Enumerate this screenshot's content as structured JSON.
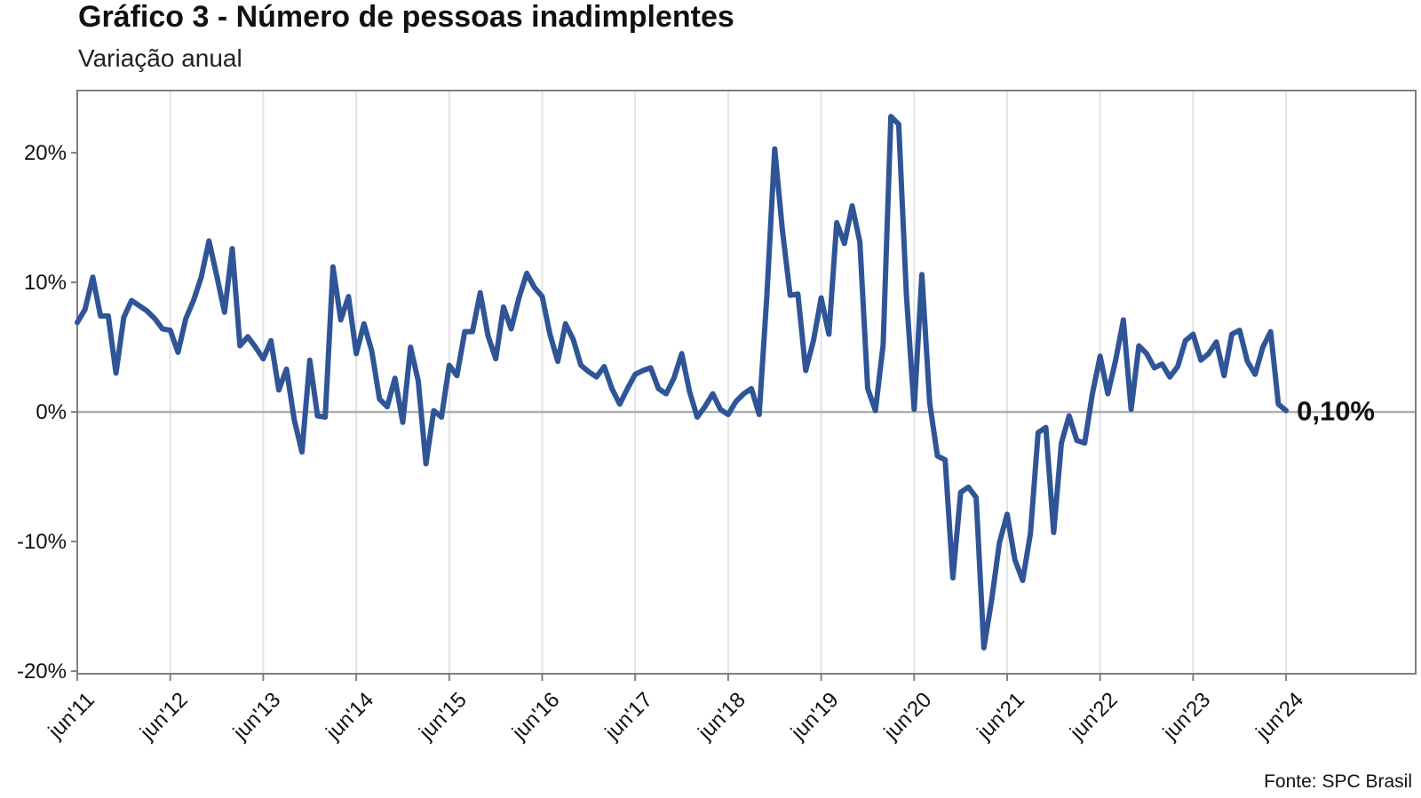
{
  "title": "Gráfico 3 - Número de pessoas inadimplentes",
  "subtitle": "Variação anual",
  "source": "Fonte: SPC Brasil",
  "end_label": "0,10%",
  "colors": {
    "line": "#2f5597",
    "grid": "#e3e3e3",
    "zero_line": "#b0b0b0",
    "frame": "#7f7f7f"
  },
  "chart_data": {
    "type": "line",
    "title": "Gráfico 3 - Número de pessoas inadimplentes",
    "subtitle": "Variação anual",
    "xlabel": "",
    "ylabel": "",
    "ylim": [
      -20.2,
      24.8
    ],
    "yticks": [
      20,
      10,
      0,
      -10,
      -20
    ],
    "ytick_labels": [
      "20%",
      "10%",
      "0%",
      "-10%",
      "-20%"
    ],
    "xticks": [
      "jun'11",
      "jun'12",
      "jun'13",
      "jun'14",
      "jun'15",
      "jun'16",
      "jun'17",
      "jun'18",
      "jun'19",
      "jun'20",
      "jun'21",
      "jun'22",
      "jun'23",
      "jun'24"
    ],
    "x_start": "jun'11",
    "x_end": "jun'24",
    "grid": "vertical",
    "series": [
      {
        "values": [
          6.9,
          7.9,
          10.4,
          7.4,
          7.4,
          3.0,
          7.3,
          8.6,
          8.2,
          7.8,
          7.2,
          6.4,
          6.3,
          4.6,
          7.2,
          8.6,
          10.4,
          13.2,
          10.5,
          7.7,
          12.6,
          5.1,
          5.8,
          5.0,
          4.1,
          5.5,
          1.7,
          3.3,
          -0.6,
          -3.1,
          4.0,
          -0.3,
          -0.4,
          11.2,
          7.1,
          8.9,
          4.5,
          6.8,
          4.7,
          1.0,
          0.4,
          2.6,
          -0.8,
          5.0,
          2.4,
          -4.0,
          0.1,
          -0.4,
          3.6,
          2.8,
          6.2,
          6.2,
          9.2,
          5.9,
          4.1,
          8.1,
          6.4,
          8.8,
          10.7,
          9.6,
          8.9,
          6.0,
          3.9,
          6.8,
          5.6,
          3.6,
          3.1,
          2.7,
          3.5,
          1.8,
          0.6,
          1.8,
          2.9,
          3.2,
          3.4,
          1.8,
          1.4,
          2.6,
          4.5,
          1.6,
          -0.4,
          0.4,
          1.4,
          0.2,
          -0.2,
          0.8,
          1.4,
          1.8,
          -0.2,
          9.0,
          20.3,
          14.0,
          9.0,
          9.1,
          3.2,
          5.5,
          8.8,
          6.0,
          14.6,
          13.0,
          15.9,
          13.1,
          1.8,
          0.1,
          5.2,
          22.8,
          22.2,
          9.0,
          0.2,
          10.6,
          0.7,
          -3.4,
          -3.7,
          -12.8,
          -6.2,
          -5.8,
          -6.6,
          -18.2,
          -14.5,
          -10.1,
          -7.9,
          -11.4,
          -13.0,
          -9.4,
          -1.6,
          -1.2,
          -9.3,
          -2.4,
          -0.3,
          -2.2,
          -2.4,
          1.4,
          4.3,
          1.4,
          4.0,
          7.1,
          0.2,
          5.1,
          4.5,
          3.4,
          3.7,
          2.7,
          3.5,
          5.5,
          6.0,
          4.0,
          4.5,
          5.4,
          2.8,
          6.0,
          6.3,
          3.9,
          2.9,
          5.0,
          6.2,
          0.6,
          0.1
        ]
      }
    ]
  }
}
